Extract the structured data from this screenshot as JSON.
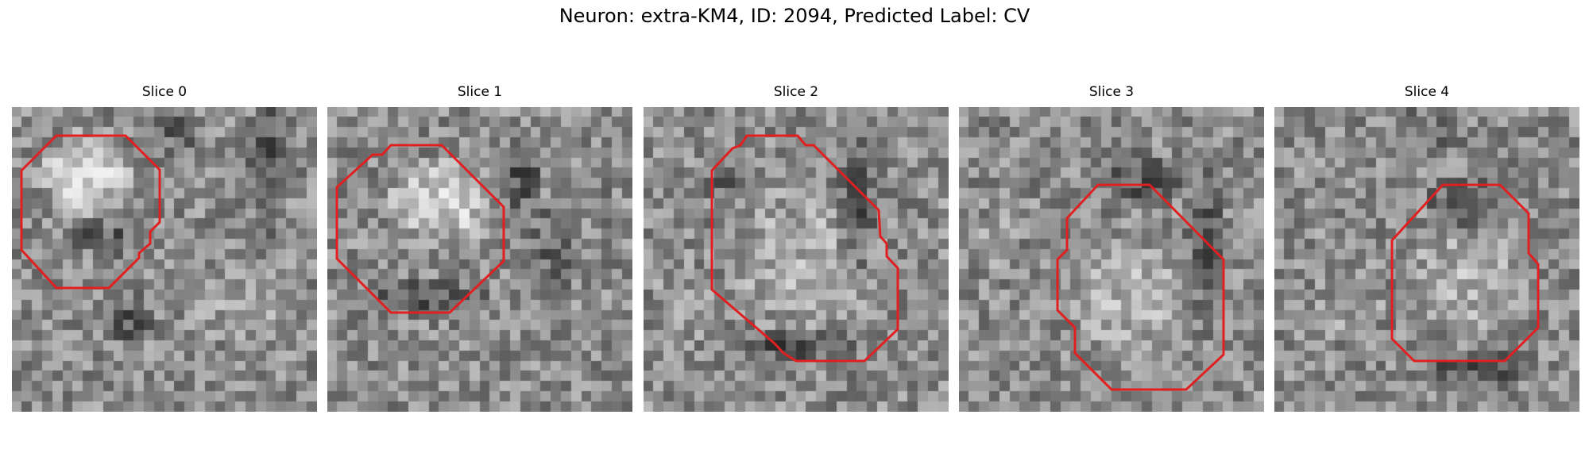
{
  "title": "Neuron: extra-KM4, ID: 2094, Predicted Label: CV",
  "contour_color": "#e02020",
  "panels": [
    {
      "label": "Slice 0"
    },
    {
      "label": "Slice 1"
    },
    {
      "label": "Slice 2"
    },
    {
      "label": "Slice 3"
    },
    {
      "label": "Slice 4"
    }
  ]
}
